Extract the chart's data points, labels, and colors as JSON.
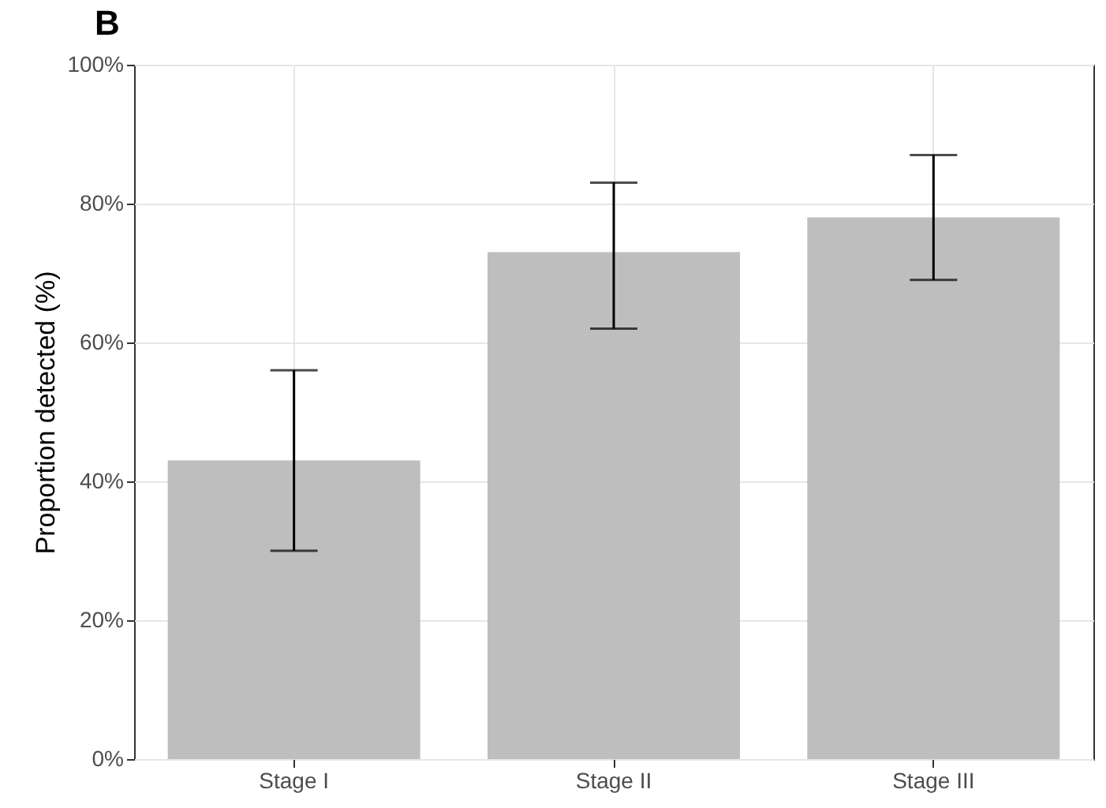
{
  "chart_data": {
    "type": "bar",
    "ylabel": "Proportion detected (%)",
    "annotations": [
      "B"
    ],
    "categories": [
      "Stage I",
      "Stage II",
      "Stage III"
    ],
    "values": [
      43,
      73,
      78
    ],
    "color": "#bebebe",
    "errors": [
      [
        30,
        56
      ],
      [
        62,
        83
      ],
      [
        69,
        87
      ]
    ],
    "ylim": [
      0,
      100
    ],
    "yticks": [
      {
        "value": 0,
        "label": "0%"
      },
      {
        "value": 20,
        "label": "20%"
      },
      {
        "value": 40,
        "label": "40%"
      },
      {
        "value": 60,
        "label": "60%"
      },
      {
        "value": 80,
        "label": "80%"
      },
      {
        "value": 100,
        "label": "100%"
      }
    ],
    "grid": true
  }
}
